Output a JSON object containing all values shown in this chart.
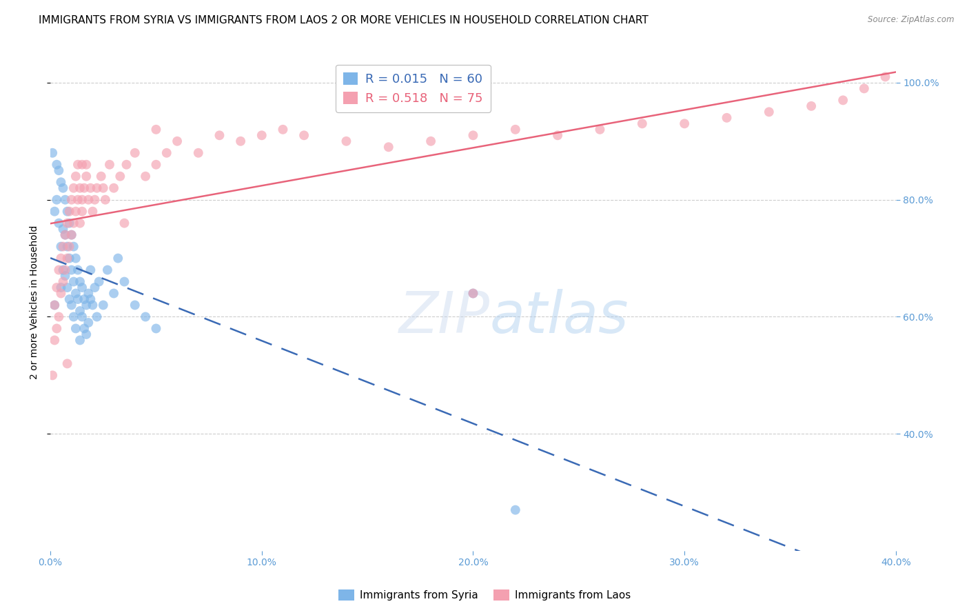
{
  "title": "IMMIGRANTS FROM SYRIA VS IMMIGRANTS FROM LAOS 2 OR MORE VEHICLES IN HOUSEHOLD CORRELATION CHART",
  "source": "Source: ZipAtlas.com",
  "ylabel": "2 or more Vehicles in Household",
  "xlim": [
    0.0,
    0.4
  ],
  "ylim": [
    0.2,
    1.05
  ],
  "xticks": [
    0.0,
    0.1,
    0.2,
    0.3,
    0.4
  ],
  "xticklabels": [
    "0.0%",
    "10.0%",
    "20.0%",
    "30.0%",
    "40.0%"
  ],
  "yticks_right": [
    0.4,
    0.6,
    0.8,
    1.0
  ],
  "yticklabels_right": [
    "40.0%",
    "60.0%",
    "80.0%",
    "100.0%"
  ],
  "syria_color": "#7EB5E8",
  "laos_color": "#F4A0B0",
  "syria_line_color": "#3A6AB5",
  "laos_line_color": "#E8637A",
  "legend_syria_R": "0.015",
  "legend_syria_N": "60",
  "legend_laos_R": "0.518",
  "legend_laos_N": "75",
  "syria_scatter_x": [
    0.001,
    0.002,
    0.002,
    0.003,
    0.003,
    0.004,
    0.004,
    0.005,
    0.005,
    0.005,
    0.006,
    0.006,
    0.006,
    0.007,
    0.007,
    0.007,
    0.008,
    0.008,
    0.008,
    0.009,
    0.009,
    0.009,
    0.01,
    0.01,
    0.01,
    0.011,
    0.011,
    0.011,
    0.012,
    0.012,
    0.012,
    0.013,
    0.013,
    0.014,
    0.014,
    0.014,
    0.015,
    0.015,
    0.016,
    0.016,
    0.017,
    0.017,
    0.018,
    0.018,
    0.019,
    0.019,
    0.02,
    0.021,
    0.022,
    0.023,
    0.025,
    0.027,
    0.03,
    0.032,
    0.035,
    0.04,
    0.045,
    0.05,
    0.2,
    0.22
  ],
  "syria_scatter_y": [
    0.88,
    0.78,
    0.62,
    0.86,
    0.8,
    0.85,
    0.76,
    0.83,
    0.72,
    0.65,
    0.82,
    0.75,
    0.68,
    0.8,
    0.74,
    0.67,
    0.78,
    0.72,
    0.65,
    0.76,
    0.7,
    0.63,
    0.74,
    0.68,
    0.62,
    0.72,
    0.66,
    0.6,
    0.7,
    0.64,
    0.58,
    0.68,
    0.63,
    0.66,
    0.61,
    0.56,
    0.65,
    0.6,
    0.63,
    0.58,
    0.62,
    0.57,
    0.64,
    0.59,
    0.63,
    0.68,
    0.62,
    0.65,
    0.6,
    0.66,
    0.62,
    0.68,
    0.64,
    0.7,
    0.66,
    0.62,
    0.6,
    0.58,
    0.64,
    0.27
  ],
  "laos_scatter_x": [
    0.001,
    0.002,
    0.002,
    0.003,
    0.003,
    0.004,
    0.004,
    0.005,
    0.005,
    0.006,
    0.006,
    0.007,
    0.007,
    0.008,
    0.008,
    0.009,
    0.009,
    0.01,
    0.01,
    0.011,
    0.011,
    0.012,
    0.012,
    0.013,
    0.013,
    0.014,
    0.014,
    0.015,
    0.015,
    0.016,
    0.017,
    0.017,
    0.018,
    0.019,
    0.02,
    0.021,
    0.022,
    0.024,
    0.026,
    0.028,
    0.03,
    0.033,
    0.036,
    0.04,
    0.045,
    0.05,
    0.055,
    0.06,
    0.07,
    0.08,
    0.09,
    0.1,
    0.11,
    0.12,
    0.14,
    0.16,
    0.18,
    0.2,
    0.22,
    0.24,
    0.26,
    0.28,
    0.3,
    0.32,
    0.34,
    0.36,
    0.375,
    0.385,
    0.395,
    0.05,
    0.025,
    0.015,
    0.008,
    0.035,
    0.2
  ],
  "laos_scatter_y": [
    0.5,
    0.56,
    0.62,
    0.58,
    0.65,
    0.6,
    0.68,
    0.64,
    0.7,
    0.66,
    0.72,
    0.68,
    0.74,
    0.7,
    0.76,
    0.72,
    0.78,
    0.74,
    0.8,
    0.76,
    0.82,
    0.78,
    0.84,
    0.8,
    0.86,
    0.82,
    0.76,
    0.78,
    0.8,
    0.82,
    0.84,
    0.86,
    0.8,
    0.82,
    0.78,
    0.8,
    0.82,
    0.84,
    0.8,
    0.86,
    0.82,
    0.84,
    0.86,
    0.88,
    0.84,
    0.86,
    0.88,
    0.9,
    0.88,
    0.91,
    0.9,
    0.91,
    0.92,
    0.91,
    0.9,
    0.89,
    0.9,
    0.91,
    0.92,
    0.91,
    0.92,
    0.93,
    0.93,
    0.94,
    0.95,
    0.96,
    0.97,
    0.99,
    1.01,
    0.92,
    0.82,
    0.86,
    0.52,
    0.76,
    0.64
  ],
  "grid_color": "#CCCCCC",
  "background_color": "#FFFFFF",
  "title_fontsize": 11,
  "axis_label_fontsize": 10,
  "tick_fontsize": 10,
  "right_tick_color": "#5B9BD5",
  "bottom_tick_color": "#5B9BD5"
}
